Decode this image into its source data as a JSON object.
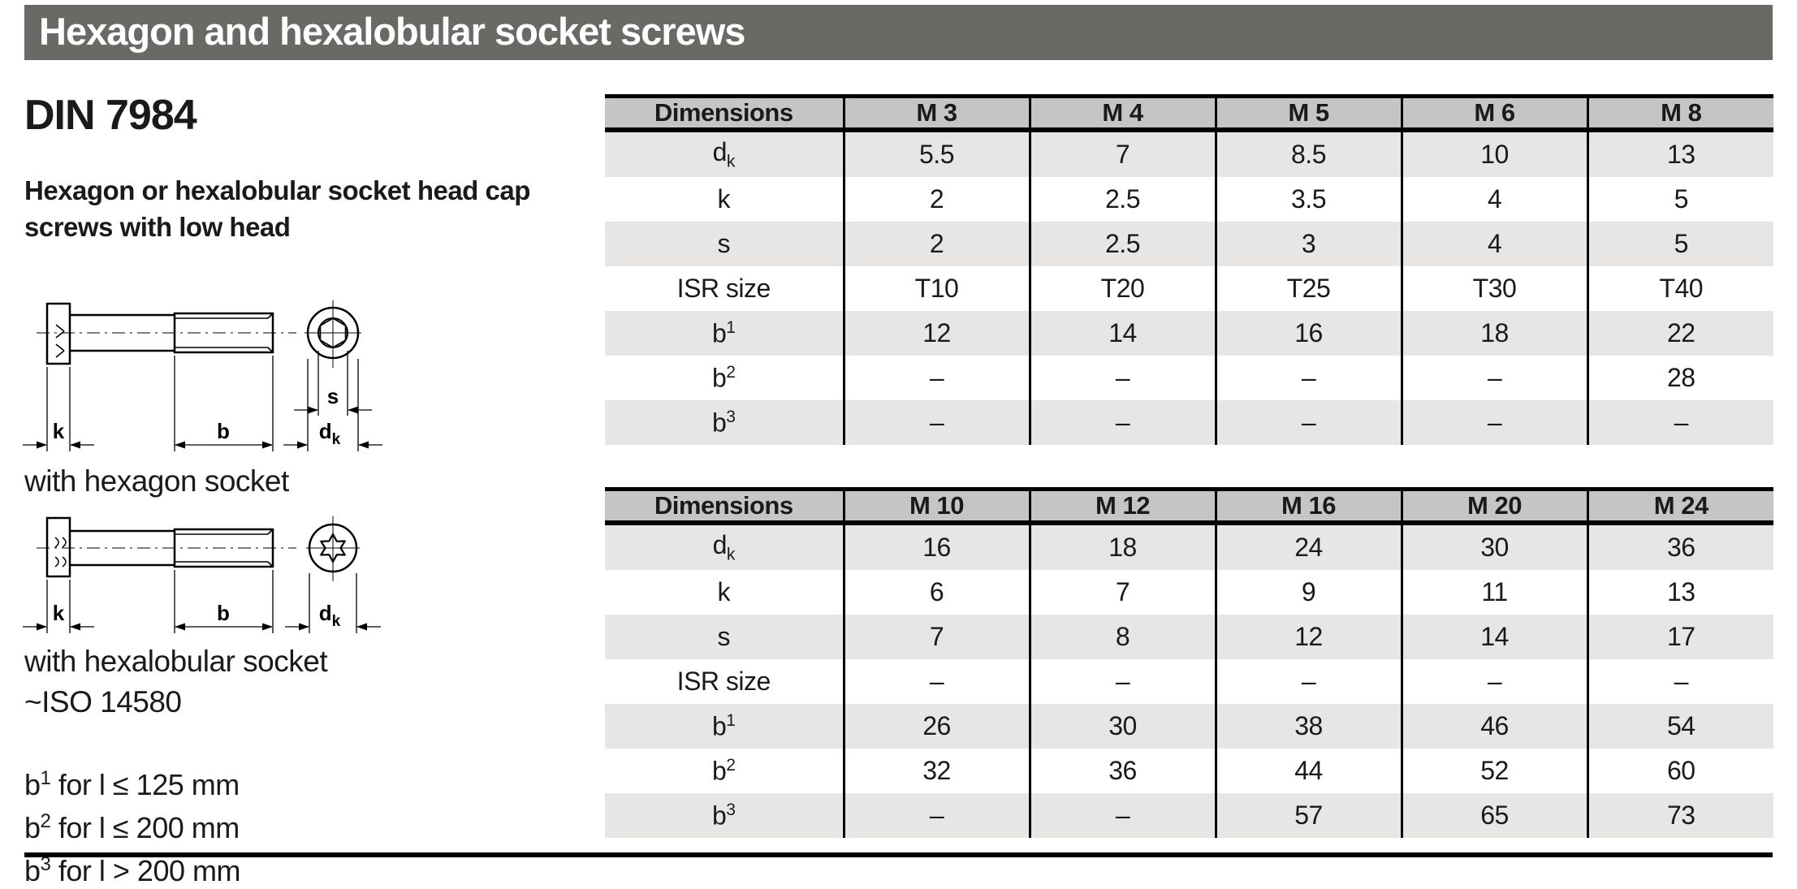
{
  "page": {
    "title": "Hexagon and hexalobular socket screws"
  },
  "colors": {
    "titlebar_bg": "#6b6966",
    "table_header_bg": "#c6c5c3",
    "row_alt_bg": "#e7e6e4",
    "rule_black": "#000000"
  },
  "left": {
    "din": "DIN 7984",
    "subtitle_line1": "Hexagon or hexalobular socket head cap",
    "subtitle_line2": "screws with low head",
    "caption_hexagon": "with hexagon socket",
    "caption_hexalobular": "with hexalobular socket",
    "caption_iso": "~ISO 14580",
    "notes": [
      {
        "base": "b",
        "sup": "1",
        "rest": " for l ≤ 125 mm"
      },
      {
        "base": "b",
        "sup": "2",
        "rest": " for l ≤ 200 mm"
      },
      {
        "base": "b",
        "sup": "3",
        "rest": " for l > 200 mm"
      }
    ],
    "dims": {
      "k": "k",
      "b": "b",
      "s": "s",
      "d_base": "d",
      "d_sub": "k"
    }
  },
  "tables": [
    {
      "header": {
        "dim_label": "Dimensions",
        "columns": [
          "M 3",
          "M 4",
          "M 5",
          "M 6",
          "M 8"
        ]
      },
      "rows": [
        {
          "label": {
            "base": "d",
            "sub": "k"
          },
          "values": [
            "5.5",
            "7",
            "8.5",
            "10",
            "13"
          ]
        },
        {
          "label": {
            "base": "k"
          },
          "values": [
            "2",
            "2.5",
            "3.5",
            "4",
            "5"
          ]
        },
        {
          "label": {
            "base": "s"
          },
          "values": [
            "2",
            "2.5",
            "3",
            "4",
            "5"
          ]
        },
        {
          "label": {
            "base": "ISR size"
          },
          "values": [
            "T10",
            "T20",
            "T25",
            "T30",
            "T40"
          ]
        },
        {
          "label": {
            "base": "b",
            "sup": "1"
          },
          "values": [
            "12",
            "14",
            "16",
            "18",
            "22"
          ]
        },
        {
          "label": {
            "base": "b",
            "sup": "2"
          },
          "values": [
            "–",
            "–",
            "–",
            "–",
            "28"
          ]
        },
        {
          "label": {
            "base": "b",
            "sup": "3"
          },
          "values": [
            "–",
            "–",
            "–",
            "–",
            "–"
          ]
        }
      ]
    },
    {
      "header": {
        "dim_label": "Dimensions",
        "columns": [
          "M 10",
          "M 12",
          "M 16",
          "M 20",
          "M 24"
        ]
      },
      "rows": [
        {
          "label": {
            "base": "d",
            "sub": "k"
          },
          "values": [
            "16",
            "18",
            "24",
            "30",
            "36"
          ]
        },
        {
          "label": {
            "base": "k"
          },
          "values": [
            "6",
            "7",
            "9",
            "11",
            "13"
          ]
        },
        {
          "label": {
            "base": "s"
          },
          "values": [
            "7",
            "8",
            "12",
            "14",
            "17"
          ]
        },
        {
          "label": {
            "base": "ISR size"
          },
          "values": [
            "–",
            "–",
            "–",
            "–",
            "–"
          ]
        },
        {
          "label": {
            "base": "b",
            "sup": "1"
          },
          "values": [
            "26",
            "30",
            "38",
            "46",
            "54"
          ]
        },
        {
          "label": {
            "base": "b",
            "sup": "2"
          },
          "values": [
            "32",
            "36",
            "44",
            "52",
            "60"
          ]
        },
        {
          "label": {
            "base": "b",
            "sup": "3"
          },
          "values": [
            "–",
            "–",
            "57",
            "65",
            "73"
          ]
        }
      ]
    }
  ]
}
